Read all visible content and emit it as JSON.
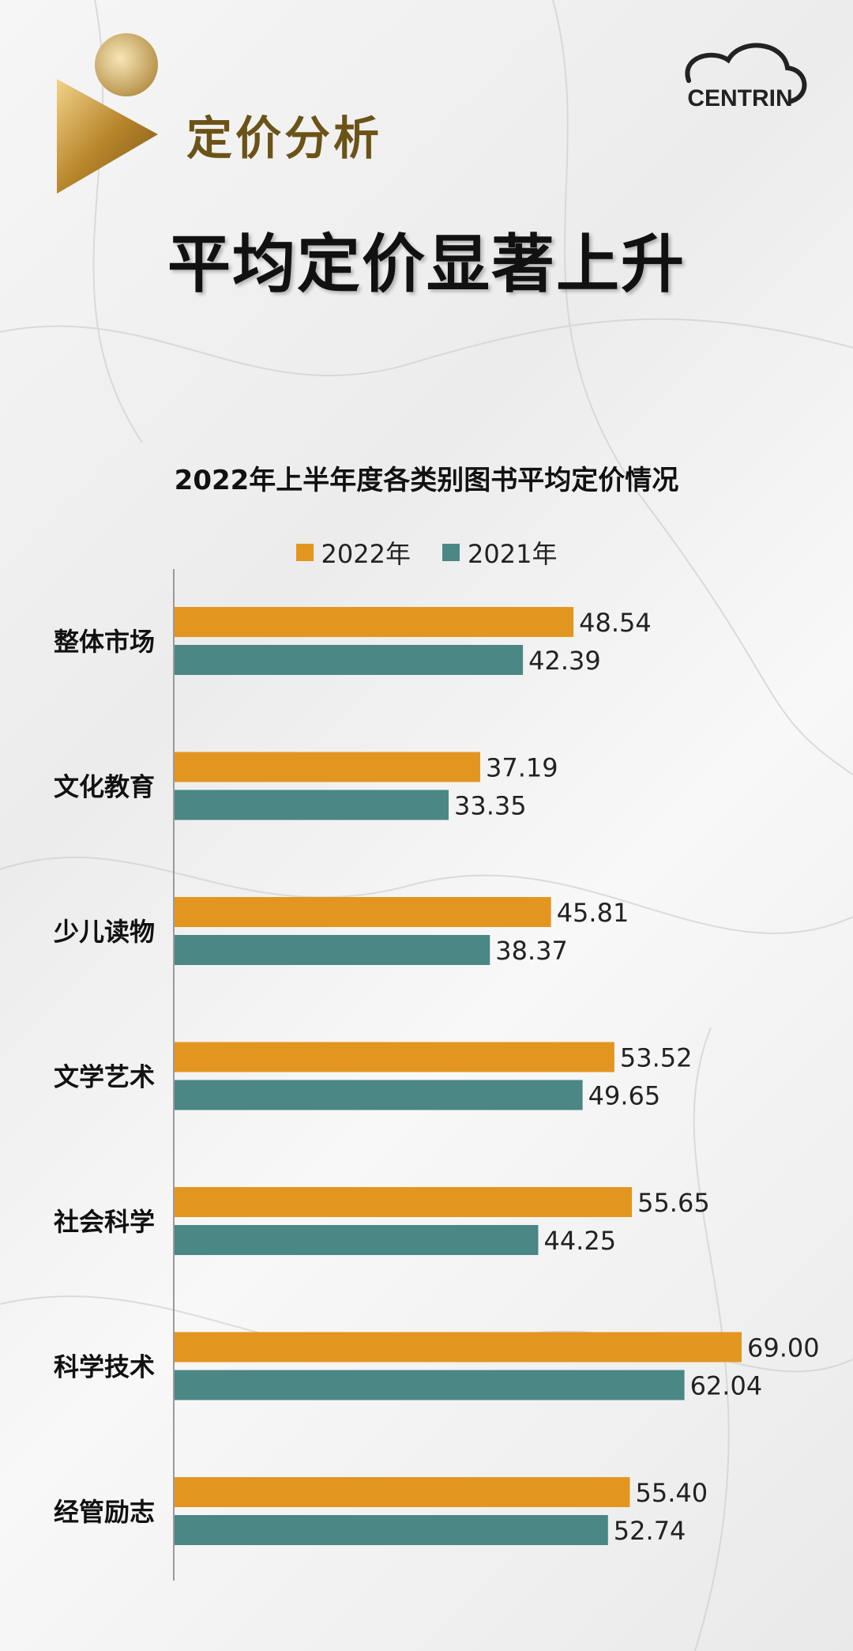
{
  "header": {
    "section_title": "定价分析",
    "headline": "平均定价显著上升",
    "logo_text": "CENTRIN"
  },
  "colors": {
    "series_2022": "#E3961F",
    "series_2021": "#4A8785",
    "title_gold": "#6b5318"
  },
  "chart_data": {
    "type": "bar",
    "orientation": "horizontal",
    "title": "2022年上半年度各类别图书平均定价情况",
    "categories": [
      "整体市场",
      "文化教育",
      "少儿读物",
      "文学艺术",
      "社会科学",
      "科学技术",
      "经管励志"
    ],
    "series": [
      {
        "name": "2022年",
        "values": [
          48.54,
          37.19,
          45.81,
          53.52,
          55.65,
          69.0,
          55.4
        ]
      },
      {
        "name": "2021年",
        "values": [
          42.39,
          33.35,
          38.37,
          49.65,
          44.25,
          62.04,
          52.74
        ]
      }
    ],
    "value_labels": [
      [
        "48.54",
        "37.19",
        "45.81",
        "53.52",
        "55.65",
        "69.00",
        "55.40"
      ],
      [
        "42.39",
        "33.35",
        "38.37",
        "49.65",
        "44.25",
        "62.04",
        "52.74"
      ]
    ],
    "xlim": [
      0,
      72
    ],
    "legend_position": "top-center",
    "grid": false
  }
}
